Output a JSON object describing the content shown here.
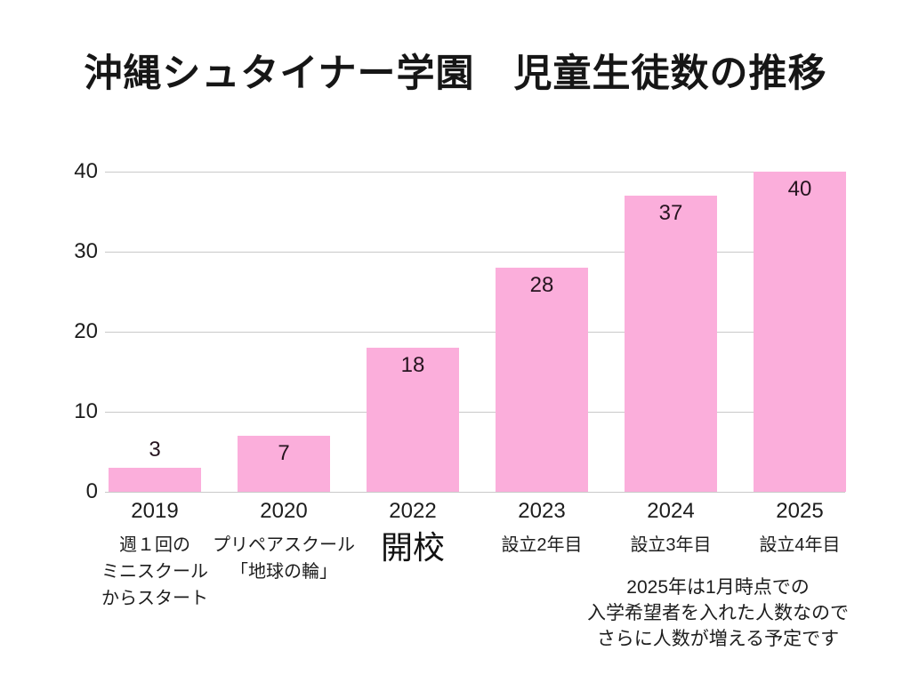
{
  "title": "沖縄シュタイナー学園　児童生徒数の推移",
  "chart_data": {
    "type": "bar",
    "title": "沖縄シュタイナー学園　児童生徒数の推移",
    "categories": [
      "2019",
      "2020",
      "2022",
      "2023",
      "2024",
      "2025"
    ],
    "values": [
      3,
      7,
      18,
      28,
      37,
      40
    ],
    "xlabel": "",
    "ylabel": "",
    "ylim": [
      0,
      40
    ],
    "yticks": [
      0,
      10,
      20,
      30,
      40
    ],
    "grid": true,
    "legend": "none",
    "bar_color": "#fbaedb",
    "gridline_color": "#c9c9c9",
    "text_color": "#1d1d1d",
    "category_annotations": [
      {
        "lines": [
          "週１回の",
          "ミニスクール",
          "からスタート"
        ],
        "emphasis": false
      },
      {
        "lines": [
          "プリペアスクール",
          "「地球の輪」"
        ],
        "emphasis": false
      },
      {
        "lines": [
          "開校"
        ],
        "emphasis": true
      },
      {
        "lines": [
          "設立2年目"
        ],
        "emphasis": false
      },
      {
        "lines": [
          "設立3年目"
        ],
        "emphasis": false
      },
      {
        "lines": [
          "設立4年目"
        ],
        "emphasis": false
      }
    ],
    "note_lines": [
      "2025年は1月時点での",
      "入学希望者を入れた人数なので",
      "さらに人数が増える予定です"
    ]
  }
}
